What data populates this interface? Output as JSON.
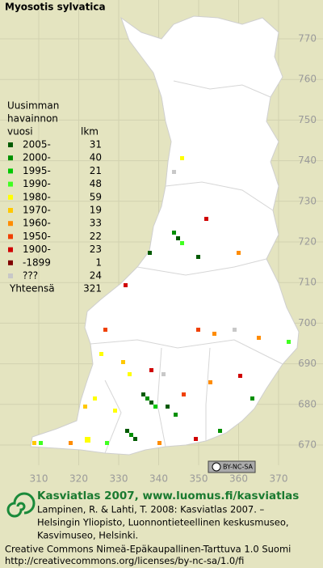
{
  "title": "Myosotis sylvatica",
  "legend": {
    "header": [
      "Uusimman",
      "havainnon",
      "vuosi"
    ],
    "count_header": "lkm",
    "rows": [
      {
        "label": "2005-",
        "count": 31,
        "color": "#005a00"
      },
      {
        "label": "2000-",
        "count": 40,
        "color": "#009000"
      },
      {
        "label": "1995-",
        "count": 21,
        "color": "#00c800"
      },
      {
        "label": "1990-",
        "count": 48,
        "color": "#40ff20"
      },
      {
        "label": "1980-",
        "count": 59,
        "color": "#ffff00"
      },
      {
        "label": "1970-",
        "count": 19,
        "color": "#ffc800"
      },
      {
        "label": "1960-",
        "count": 33,
        "color": "#ff8c00"
      },
      {
        "label": "1950-",
        "count": 22,
        "color": "#f04000"
      },
      {
        "label": "1900-",
        "count": 23,
        "color": "#d00000"
      },
      {
        "label": "-1899",
        "count": 1,
        "color": "#800000"
      },
      {
        "label": "???",
        "count": 24,
        "color": "#c8c8c8"
      }
    ],
    "total": {
      "label": "Yhteensä",
      "count": 321
    }
  },
  "grid": {
    "y_labels": [
      770,
      760,
      750,
      740,
      730,
      720,
      710,
      700,
      690,
      680,
      670
    ],
    "x_labels": [
      310,
      320,
      330,
      340,
      350,
      360,
      370
    ]
  },
  "badge": "BY-NC-SA",
  "footer": {
    "title": "Kasviatlas 2007, www.luomus.fi/kasviatlas",
    "citation": [
      "Lampinen, R. & Lahti, T. 2008: Kasviatlas 2007. –",
      "Helsingin Yliopisto, Luonnontieteellinen keskusmuseo,",
      "Kasvimuseo, Helsinki."
    ],
    "license": [
      "Creative Commons Nimeä-Epäkaupallinen-Tarttuva 1.0 Suomi",
      "http://creativecommons.org/licenses/by-nc-sa/1.0/fi"
    ]
  }
}
